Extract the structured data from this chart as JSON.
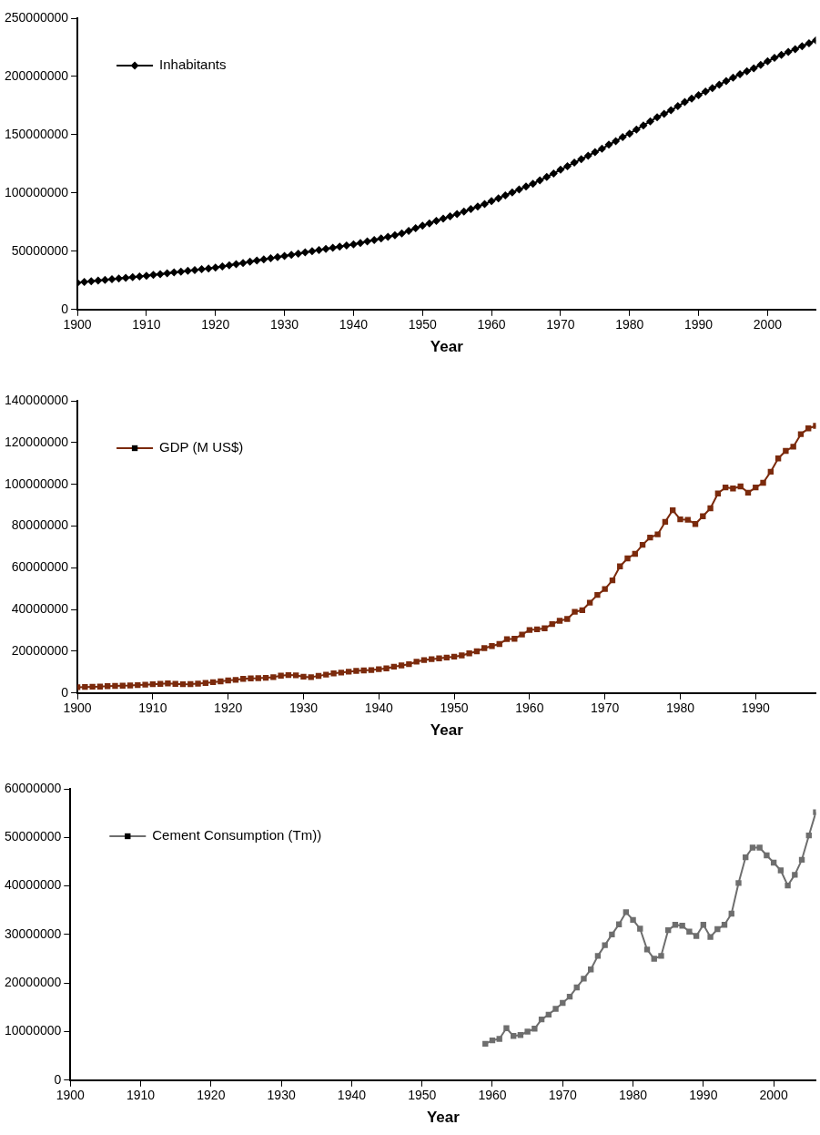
{
  "chart_data": [
    {
      "type": "line",
      "xlabel": "Year",
      "legend": "top left",
      "marker": "diamond",
      "xlim": [
        1900,
        2007
      ],
      "xticks": [
        1900,
        1910,
        1920,
        1930,
        1940,
        1950,
        1960,
        1970,
        1980,
        1990,
        2000
      ],
      "ylim": [
        0,
        250000000
      ],
      "yticks": [
        0,
        50000000,
        100000000,
        150000000,
        200000000,
        250000000
      ],
      "x": [
        1900,
        1901,
        1902,
        1903,
        1904,
        1905,
        1906,
        1907,
        1908,
        1909,
        1910,
        1911,
        1912,
        1913,
        1914,
        1915,
        1916,
        1917,
        1918,
        1919,
        1920,
        1921,
        1922,
        1923,
        1924,
        1925,
        1926,
        1927,
        1928,
        1929,
        1930,
        1931,
        1932,
        1933,
        1934,
        1935,
        1936,
        1937,
        1938,
        1939,
        1940,
        1941,
        1942,
        1943,
        1944,
        1945,
        1946,
        1947,
        1948,
        1949,
        1950,
        1951,
        1952,
        1953,
        1954,
        1955,
        1956,
        1957,
        1958,
        1959,
        1960,
        1961,
        1962,
        1963,
        1964,
        1965,
        1966,
        1967,
        1968,
        1969,
        1970,
        1971,
        1972,
        1973,
        1974,
        1975,
        1976,
        1977,
        1978,
        1979,
        1980,
        1981,
        1982,
        1983,
        1984,
        1985,
        1986,
        1987,
        1988,
        1989,
        1990,
        1991,
        1992,
        1993,
        1994,
        1995,
        1996,
        1997,
        1998,
        1999,
        2000,
        2001,
        2002,
        2003,
        2004,
        2005,
        2006,
        2007
      ],
      "series": [
        {
          "name": "Inhabitants",
          "color": "#000000",
          "values": [
            23000000.0,
            23600000.0,
            24200000.0,
            24800000.0,
            25400000.0,
            26000000.0,
            26600000.0,
            27200000.0,
            27800000.0,
            28400000.0,
            29000000.0,
            29700000.0,
            30400000.0,
            31100000.0,
            31800000.0,
            32500000.0,
            33200000.0,
            33900000.0,
            34600000.0,
            35300000.0,
            36000000.0,
            37000000.0,
            38000000.0,
            39000000.0,
            40000000.0,
            41000000.0,
            42000000.0,
            43000000.0,
            44000000.0,
            45000000.0,
            46000000.0,
            47000000.0,
            48000000.0,
            49000000.0,
            50000000.0,
            51000000.0,
            52000000.0,
            53000000.0,
            54000000.0,
            55000000.0,
            56000000.0,
            57200000.0,
            58400000.0,
            59600000.0,
            61000000.0,
            62400000.0,
            63800000.0,
            65300000.0,
            67500000.0,
            69800000.0,
            72000000.0,
            74000000.0,
            76000000.0,
            78000000.0,
            80000000.0,
            82000000.0,
            84000000.0,
            86200000.0,
            88400000.0,
            90600000.0,
            93000000.0,
            95500000.0,
            98000000.0,
            100500000.0,
            103000000.0,
            105500000.0,
            108000000.0,
            110800000.0,
            113800000.0,
            116800000.0,
            120000000.0,
            123000000.0,
            126000000.0,
            129000000.0,
            132000000.0,
            135000000.0,
            138000000.0,
            141500000.0,
            144500000.0,
            148000000.0,
            151000000.0,
            154500000.0,
            158000000.0,
            161500000.0,
            165000000.0,
            168000000.0,
            171000000.0,
            174500000.0,
            178000000.0,
            181000000.0,
            184000000.0,
            187000000.0,
            190000000.0,
            193000000.0,
            196000000.0,
            199000000.0,
            202000000.0,
            204500000.0,
            207000000.0,
            210000000.0,
            213000000.0,
            216000000.0,
            218500000.0,
            221000000.0,
            223500000.0,
            226000000.0,
            228500000.0,
            231000000.0
          ]
        }
      ]
    },
    {
      "type": "line",
      "xlabel": "Year",
      "legend": "top left",
      "marker": "square",
      "xlim": [
        1900,
        1998
      ],
      "xticks": [
        1900,
        1910,
        1920,
        1930,
        1940,
        1950,
        1960,
        1970,
        1980,
        1990
      ],
      "ylim": [
        0,
        140000000
      ],
      "yticks": [
        0,
        20000000,
        40000000,
        60000000,
        80000000,
        100000000,
        120000000,
        140000000
      ],
      "x": [
        1900,
        1901,
        1902,
        1903,
        1904,
        1905,
        1906,
        1907,
        1908,
        1909,
        1910,
        1911,
        1912,
        1913,
        1914,
        1915,
        1916,
        1917,
        1918,
        1919,
        1920,
        1921,
        1922,
        1923,
        1924,
        1925,
        1926,
        1927,
        1928,
        1929,
        1930,
        1931,
        1932,
        1933,
        1934,
        1935,
        1936,
        1937,
        1938,
        1939,
        1940,
        1941,
        1942,
        1943,
        1944,
        1945,
        1946,
        1947,
        1948,
        1949,
        1950,
        1951,
        1952,
        1953,
        1954,
        1955,
        1956,
        1957,
        1958,
        1959,
        1960,
        1961,
        1962,
        1963,
        1964,
        1965,
        1966,
        1967,
        1968,
        1969,
        1970,
        1971,
        1972,
        1973,
        1974,
        1975,
        1976,
        1977,
        1978,
        1979,
        1980,
        1981,
        1982,
        1983,
        1984,
        1985,
        1986,
        1987,
        1988,
        1989,
        1990,
        1991,
        1992,
        1993,
        1994,
        1995,
        1996,
        1997,
        1998
      ],
      "series": [
        {
          "name": "GDP (M US$)",
          "color": "#7b2a0c",
          "values": [
            2800000.0,
            2900000.0,
            3000000.0,
            3100000.0,
            3300000.0,
            3400000.0,
            3500000.0,
            3600000.0,
            3800000.0,
            4000000.0,
            4200000.0,
            4400000.0,
            4600000.0,
            4400000.0,
            4200000.0,
            4300000.0,
            4500000.0,
            4800000.0,
            5200000.0,
            5600000.0,
            6000000.0,
            6300000.0,
            6800000.0,
            7000000.0,
            7100000.0,
            7300000.0,
            7600000.0,
            8300000.0,
            8600000.0,
            8500000.0,
            7800000.0,
            7600000.0,
            8200000.0,
            8800000.0,
            9400000.0,
            9800000.0,
            10200000.0,
            10600000.0,
            10800000.0,
            11000000.0,
            11400000.0,
            11800000.0,
            12600000.0,
            13200000.0,
            13800000.0,
            15000000.0,
            15800000.0,
            16200000.0,
            16600000.0,
            17000000.0,
            17400000.0,
            18000000.0,
            19000000.0,
            20000000.0,
            21500000.0,
            22500000.0,
            23500000.0,
            25800000.0,
            26000000.0,
            28000000.0,
            30200000.0,
            30500000.0,
            31000000.0,
            33000000.0,
            34600000.0,
            35500000.0,
            38900000.0,
            39700000.0,
            43300000.0,
            47000000.0,
            49800000.0,
            54000000.0,
            60700000.0,
            64500000.0,
            66700000.0,
            71000000.0,
            74500000.0,
            76000000.0,
            82000000.0,
            87600000.0,
            83200000.0,
            83000000.0,
            81000000.0,
            84700000.0,
            88500000.0,
            95600000.0,
            98500000.0,
            98000000.0,
            99000000.0,
            96000000.0,
            98500000.0,
            100700000.0,
            106000000.0,
            112400000.0,
            116000000.0,
            118000000.0,
            124000000.0,
            126800000.0,
            128000000.0
          ]
        }
      ]
    },
    {
      "type": "line",
      "xlabel": "Year",
      "legend": "top left",
      "marker": "square",
      "xlim": [
        1900,
        2006
      ],
      "xticks": [
        1900,
        1910,
        1920,
        1930,
        1940,
        1950,
        1960,
        1970,
        1980,
        1990,
        2000
      ],
      "ylim": [
        0,
        60000000
      ],
      "yticks": [
        0,
        10000000,
        20000000,
        30000000,
        40000000,
        50000000,
        60000000
      ],
      "x": [
        1959,
        1960,
        1961,
        1962,
        1963,
        1964,
        1965,
        1966,
        1967,
        1968,
        1969,
        1970,
        1971,
        1972,
        1973,
        1974,
        1975,
        1976,
        1977,
        1978,
        1979,
        1980,
        1981,
        1982,
        1983,
        1984,
        1985,
        1986,
        1987,
        1988,
        1989,
        1990,
        1991,
        1992,
        1993,
        1994,
        1995,
        1996,
        1997,
        1998,
        1999,
        2000,
        2001,
        2002,
        2003,
        2004,
        2005,
        2006
      ],
      "series": [
        {
          "name": "Cement Consumption (Tm))",
          "color": "#6e6e6e",
          "values": [
            7500000.0,
            8200000.0,
            8500000.0,
            10700000.0,
            9100000.0,
            9300000.0,
            10000000.0,
            10600000.0,
            12500000.0,
            13500000.0,
            14700000.0,
            15900000.0,
            17200000.0,
            19100000.0,
            20900000.0,
            22800000.0,
            25600000.0,
            27800000.0,
            30000000.0,
            32100000.0,
            34600000.0,
            33000000.0,
            31200000.0,
            26900000.0,
            25000000.0,
            25600000.0,
            30900000.0,
            32000000.0,
            31800000.0,
            30600000.0,
            29700000.0,
            32000000.0,
            29500000.0,
            31100000.0,
            32000000.0,
            34300000.0,
            40600000.0,
            45900000.0,
            47900000.0,
            47900000.0,
            46300000.0,
            44800000.0,
            43200000.0,
            40100000.0,
            42300000.0,
            45400000.0,
            50400000.0,
            55200000.0
          ]
        }
      ]
    }
  ]
}
